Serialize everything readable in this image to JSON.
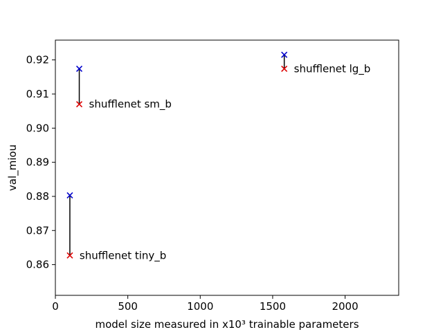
{
  "chart_data": {
    "type": "scatter",
    "xlabel": "model size measured in x10³ trainable parameters",
    "ylabel": "val_miou",
    "xlim": [
      0,
      2370
    ],
    "ylim": [
      0.851,
      0.9258
    ],
    "x_ticks": [
      0,
      500,
      1000,
      1500,
      2000
    ],
    "y_ticks": [
      0.86,
      0.87,
      0.88,
      0.89,
      0.9,
      0.91,
      0.92
    ],
    "x_tick_labels": [
      "0",
      "500",
      "1000",
      "1500",
      "2000"
    ],
    "y_tick_labels": [
      "0.86",
      "0.87",
      "0.88",
      "0.89",
      "0.90",
      "0.91",
      "0.92"
    ],
    "grid": false,
    "marker": "x",
    "colors": {
      "upper": "#0000cc",
      "lower": "#dd0000",
      "connector": "#000000"
    },
    "points": [
      {
        "label": "shufflenet tiny_b",
        "x": 100,
        "y_upper": 0.8803,
        "y_lower": 0.8627
      },
      {
        "label": "shufflenet sm_b",
        "x": 165,
        "y_upper": 0.9174,
        "y_lower": 0.907
      },
      {
        "label": "shufflenet lg_b",
        "x": 1580,
        "y_upper": 0.9215,
        "y_lower": 0.9174
      }
    ]
  }
}
